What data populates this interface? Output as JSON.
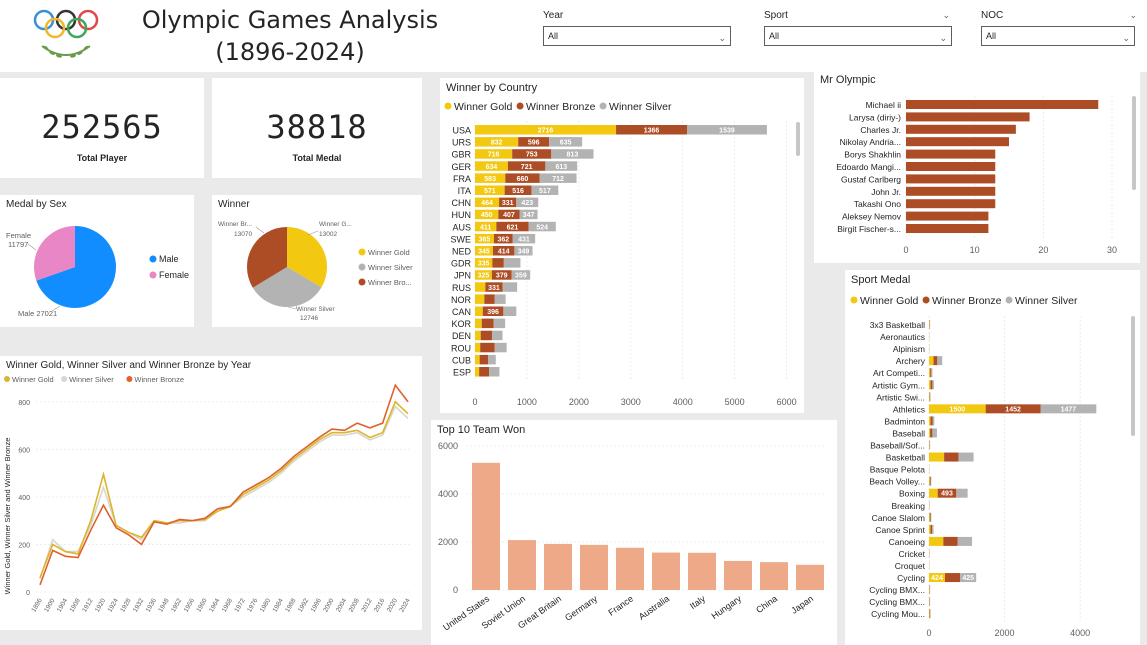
{
  "header": {
    "title_line1": "Olympic Games Analysis",
    "title_line2": "(1896-2024)",
    "logo": "olympic-rings-logo",
    "slicers": [
      {
        "label": "Year",
        "value": "All"
      },
      {
        "label": "Sport",
        "value": "All"
      },
      {
        "label": "NOC",
        "value": "All"
      }
    ]
  },
  "kpis": {
    "players": {
      "value": "252565",
      "label": "Total Player"
    },
    "medals": {
      "value": "38818",
      "label": "Total Medal"
    }
  },
  "colors": {
    "gold": "#f2c811",
    "bronze": "#ad4d25",
    "silver": "#b3b3b3",
    "male": "#118dff",
    "female": "#e986c6",
    "bar": "#eeaa88",
    "line_gold": "#d9b62b",
    "line_silver": "#d9d6cc",
    "line_bronze": "#e0612a"
  },
  "chart_data": [
    {
      "id": "medal_by_sex",
      "type": "pie",
      "title": "Medal by Sex",
      "slices": [
        {
          "name": "Male",
          "value": 27021,
          "label": "Male 27021"
        },
        {
          "name": "Female",
          "value": 11797,
          "label": "Female 11797"
        }
      ],
      "legend": [
        "Male",
        "Female"
      ]
    },
    {
      "id": "winner",
      "type": "pie",
      "title": "Winner",
      "slices": [
        {
          "name": "Winner Gold",
          "value": 13002,
          "label": "Winner G... 13002"
        },
        {
          "name": "Winner Silver",
          "value": 12746,
          "label": "Winner Silver 12746"
        },
        {
          "name": "Winner Bronze",
          "value": 13070,
          "label": "Winner Br... 13070"
        }
      ],
      "legend": [
        "Winner Gold",
        "Winner Silver",
        "Winner Bro..."
      ]
    },
    {
      "id": "winner_by_country",
      "type": "bar",
      "title": "Winner by Country",
      "orientation": "horizontal",
      "stacked": true,
      "legend": [
        "Winner Gold",
        "Winner Bronze",
        "Winner Silver"
      ],
      "categories": [
        "USA",
        "URS",
        "GBR",
        "GER",
        "FRA",
        "ITA",
        "CHN",
        "HUN",
        "AUS",
        "SWE",
        "NED",
        "GDR",
        "JPN",
        "RUS",
        "NOR",
        "CAN",
        "KOR",
        "DEN",
        "ROU",
        "CUB",
        "ESP"
      ],
      "series": [
        {
          "name": "Winner Gold",
          "values": [
            2716,
            832,
            716,
            634,
            583,
            571,
            464,
            450,
            411,
            365,
            345,
            335,
            325,
            200,
            180,
            150,
            130,
            110,
            100,
            90,
            80
          ]
        },
        {
          "name": "Winner Bronze",
          "values": [
            1366,
            596,
            753,
            721,
            660,
            516,
            331,
            407,
            621,
            362,
            414,
            220,
            379,
            331,
            200,
            396,
            230,
            220,
            280,
            160,
            190
          ]
        },
        {
          "name": "Winner Silver",
          "values": [
            1539,
            635,
            813,
            613,
            712,
            517,
            423,
            347,
            524,
            431,
            349,
            320,
            359,
            280,
            210,
            250,
            220,
            200,
            230,
            150,
            200
          ]
        }
      ],
      "data_labels": {
        "Winner Gold": [
          "2716",
          "832",
          "716",
          "634",
          "583",
          "571",
          "464",
          "450",
          "411",
          "365",
          "345",
          "335",
          "325",
          "",
          "",
          "",
          "",
          "",
          "",
          "",
          ""
        ],
        "Winner Bronze": [
          "1366",
          "596",
          "753",
          "721",
          "660",
          "516",
          "331",
          "407",
          "621",
          "362",
          "414",
          "",
          "379",
          "331",
          "",
          "396",
          "",
          "",
          "",
          "",
          ""
        ],
        "Winner Silver": [
          "1539",
          "635",
          "813",
          "613",
          "712",
          "517",
          "423",
          "347",
          "524",
          "431",
          "349",
          "",
          "359",
          "",
          "",
          "",
          "",
          "",
          "",
          "",
          ""
        ]
      },
      "x_ticks": [
        "0",
        "1000",
        "2000",
        "3000",
        "4000",
        "5000",
        "6000"
      ],
      "xlim": [
        0,
        6200
      ]
    },
    {
      "id": "mr_olympic",
      "type": "bar",
      "title": "Mr Olympic",
      "orientation": "horizontal",
      "categories": [
        "Michael ii",
        "Larysa (diriy-)",
        "Charles Jr.",
        "Nikolay Andria...",
        "Borys Shakhlin",
        "Edoardo Mangi...",
        "Gustaf Carlberg",
        "John Jr.",
        "Takashi Ono",
        "Aleksey Nemov",
        "Birgit Fischer-s..."
      ],
      "values": [
        28,
        18,
        16,
        15,
        13,
        13,
        13,
        13,
        13,
        12,
        12
      ],
      "x_ticks": [
        "0",
        "10",
        "20",
        "30"
      ],
      "xlim": [
        0,
        30
      ]
    },
    {
      "id": "sport_medal",
      "type": "bar",
      "title": "Sport Medal",
      "orientation": "horizontal",
      "stacked": true,
      "legend": [
        "Winner Gold",
        "Winner Bronze",
        "Winner Silver"
      ],
      "categories": [
        "3x3 Basketball",
        "Aeronautics",
        "Alpinism",
        "Archery",
        "Art Competi...",
        "Artistic Gym...",
        "Artistic Swi...",
        "Athletics",
        "Badminton",
        "Baseball",
        "Baseball/Sof...",
        "Basketball",
        "Basque Pelota",
        "Beach Volley...",
        "Boxing",
        "Breaking",
        "Canoe Slalom",
        "Canoe Sprint",
        "Canoeing",
        "Cricket",
        "Croquet",
        "Cycling",
        "Cycling BMX...",
        "Cycling BMX...",
        "Cycling Mou..."
      ],
      "series": [
        {
          "name": "Winner Gold",
          "values": [
            10,
            5,
            5,
            120,
            30,
            40,
            15,
            1500,
            40,
            30,
            10,
            400,
            5,
            20,
            230,
            5,
            20,
            40,
            380,
            5,
            5,
            424,
            10,
            10,
            15
          ]
        },
        {
          "name": "Winner Bronze",
          "values": [
            10,
            2,
            2,
            100,
            30,
            50,
            10,
            1452,
            60,
            60,
            10,
            380,
            2,
            20,
            493,
            5,
            20,
            40,
            380,
            5,
            2,
            400,
            10,
            10,
            15
          ]
        },
        {
          "name": "Winner Silver",
          "values": [
            10,
            3,
            3,
            130,
            30,
            40,
            15,
            1477,
            40,
            120,
            10,
            400,
            3,
            20,
            300,
            5,
            20,
            40,
            380,
            5,
            3,
            425,
            10,
            10,
            15
          ]
        }
      ],
      "data_labels": {
        "Athletics": [
          "1500",
          "1452",
          "1477"
        ],
        "Boxing": [
          "",
          "493",
          ""
        ],
        "Cycling": [
          "424",
          "",
          "425"
        ]
      },
      "x_ticks": [
        "0",
        "2000",
        "4000"
      ],
      "xlim": [
        0,
        4500
      ]
    },
    {
      "id": "by_year",
      "type": "line",
      "title": "Winner Gold, Winner Silver and Winner Bronze by Year",
      "ylabel": "Winner Gold, Winner Silver and Winner Bronze",
      "legend": [
        "Winner Gold",
        "Winner Silver",
        "Winner Bronze"
      ],
      "x": [
        "1896",
        "1900",
        "1904",
        "1908",
        "1912",
        "1920",
        "1924",
        "1928",
        "1932",
        "1936",
        "1948",
        "1952",
        "1956",
        "1960",
        "1964",
        "1968",
        "1972",
        "1976",
        "1980",
        "1984",
        "1988",
        "1992",
        "1996",
        "2000",
        "2004",
        "2008",
        "2012",
        "2016",
        "2020",
        "2024"
      ],
      "x_tick_labels": [
        "1896",
        "1900",
        "1904",
        "1908",
        "1912",
        "1920",
        "1924",
        "1928",
        "1932",
        "1936",
        "1948",
        "1952",
        "1956",
        "1960",
        "1964",
        "1968",
        "1972",
        "1976",
        "1980",
        "1984",
        "1988",
        "1992",
        "1996",
        "2000",
        "2004",
        "2008",
        "2012",
        "2016",
        "2020",
        "2024"
      ],
      "series": [
        {
          "name": "Winner Gold",
          "values": [
            60,
            200,
            170,
            160,
            300,
            495,
            280,
            250,
            230,
            300,
            290,
            300,
            300,
            305,
            340,
            360,
            410,
            440,
            470,
            510,
            560,
            600,
            640,
            670,
            670,
            680,
            650,
            670,
            800,
            750
          ]
        },
        {
          "name": "Winner Silver",
          "values": [
            55,
            220,
            170,
            170,
            280,
            440,
            280,
            250,
            220,
            300,
            290,
            290,
            300,
            300,
            340,
            360,
            400,
            430,
            460,
            500,
            550,
            590,
            630,
            660,
            660,
            670,
            640,
            660,
            780,
            730
          ]
        },
        {
          "name": "Winner Bronze",
          "values": [
            30,
            175,
            150,
            145,
            260,
            365,
            270,
            240,
            200,
            295,
            285,
            305,
            300,
            310,
            350,
            360,
            420,
            450,
            480,
            520,
            570,
            610,
            650,
            685,
            680,
            710,
            690,
            710,
            870,
            800
          ]
        }
      ],
      "y_ticks": [
        "0",
        "200",
        "400",
        "600",
        "800"
      ],
      "ylim": [
        0,
        900
      ]
    },
    {
      "id": "top10",
      "type": "bar",
      "title": "Top 10 Team Won",
      "categories": [
        "United States",
        "Soviet Union",
        "Great Britain",
        "Germany",
        "France",
        "Australia",
        "Italy",
        "Hungary",
        "China",
        "Japan"
      ],
      "values": [
        5300,
        2080,
        1920,
        1880,
        1760,
        1560,
        1550,
        1210,
        1160,
        1050
      ],
      "y_ticks": [
        "0",
        "2000",
        "4000",
        "6000"
      ],
      "ylim": [
        0,
        6000
      ]
    }
  ]
}
